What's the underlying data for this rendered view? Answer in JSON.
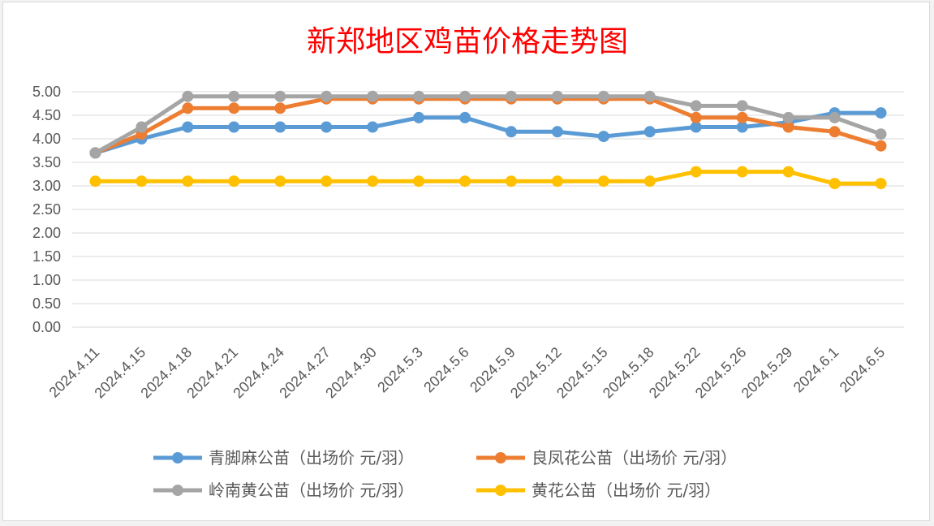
{
  "chart_data": {
    "type": "line",
    "title": "新郑地区鸡苗价格走势图",
    "title_color": "#ff0000",
    "xlabel": "",
    "ylabel": "",
    "ylim": [
      0,
      5
    ],
    "y_ticks": [
      "0.00",
      "0.50",
      "1.00",
      "1.50",
      "2.00",
      "2.50",
      "3.00",
      "3.50",
      "4.00",
      "4.50",
      "5.00"
    ],
    "grid": true,
    "legend_position": "bottom",
    "categories": [
      "2024.4.11",
      "2024.4.15",
      "2024.4.18",
      "2024.4.21",
      "2024.4.24",
      "2024.4.27",
      "2024.4.30",
      "2024.5.3",
      "2024.5.6",
      "2024.5.9",
      "2024.5.12",
      "2024.5.15",
      "2024.5.18",
      "2024.5.22",
      "2024.5.26",
      "2024.5.29",
      "2024.6.1",
      "2024.6.5"
    ],
    "series": [
      {
        "name": "青脚麻公苗（出场价 元/羽）",
        "color": "#5b9bd5",
        "values": [
          3.7,
          4.0,
          4.25,
          4.25,
          4.25,
          4.25,
          4.25,
          4.45,
          4.45,
          4.15,
          4.15,
          4.05,
          4.15,
          4.25,
          4.25,
          4.35,
          4.55,
          4.55
        ]
      },
      {
        "name": "良凤花公苗（出场价 元/羽）",
        "color": "#ed7d31",
        "values": [
          3.7,
          4.1,
          4.65,
          4.65,
          4.65,
          4.85,
          4.85,
          4.85,
          4.85,
          4.85,
          4.85,
          4.85,
          4.85,
          4.45,
          4.45,
          4.25,
          4.15,
          3.85
        ]
      },
      {
        "name": "岭南黄公苗（出场价 元/羽）",
        "color": "#a5a5a5",
        "values": [
          3.7,
          4.25,
          4.9,
          4.9,
          4.9,
          4.9,
          4.9,
          4.9,
          4.9,
          4.9,
          4.9,
          4.9,
          4.9,
          4.7,
          4.7,
          4.45,
          4.45,
          4.1
        ]
      },
      {
        "name": "黄花公苗（出场价 元/羽）",
        "color": "#ffc000",
        "values": [
          3.1,
          3.1,
          3.1,
          3.1,
          3.1,
          3.1,
          3.1,
          3.1,
          3.1,
          3.1,
          3.1,
          3.1,
          3.1,
          3.3,
          3.3,
          3.3,
          3.05,
          3.05
        ]
      }
    ]
  }
}
